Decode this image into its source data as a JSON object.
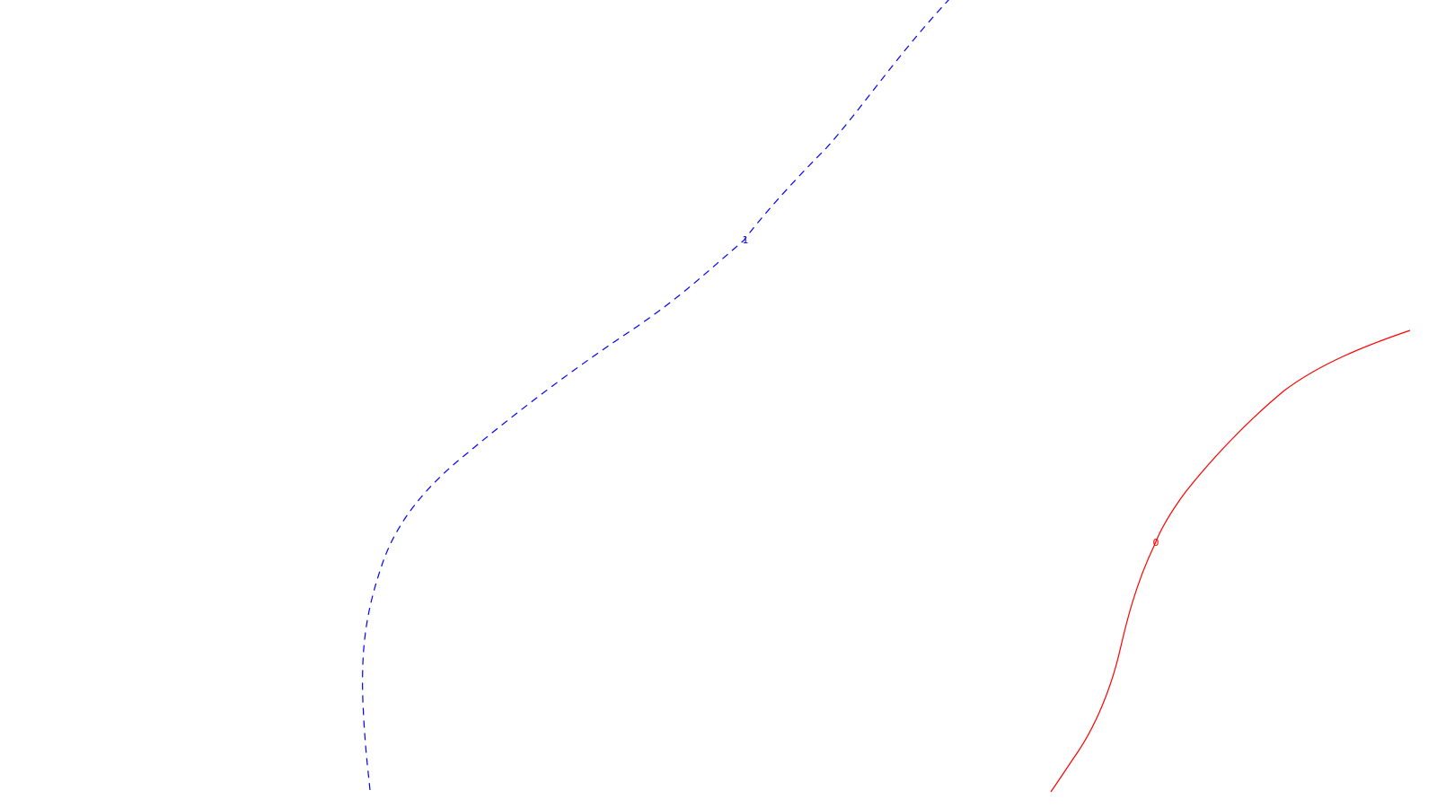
{
  "contours": [
    {
      "level": "1",
      "color": "#0000ff",
      "style": "dashed"
    },
    {
      "level": "0",
      "color": "#ff0000",
      "style": "solid"
    }
  ]
}
